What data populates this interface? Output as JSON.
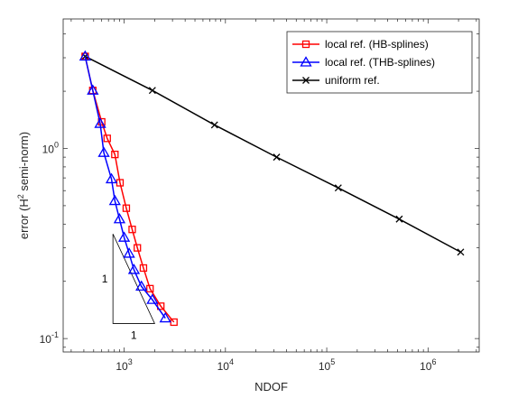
{
  "chart_data": {
    "type": "line",
    "xscale": "log",
    "yscale": "log",
    "xlim": [
      250,
      3200000
    ],
    "ylim": [
      0.085,
      4.8
    ],
    "xlabel": "NDOF",
    "ylabel": {
      "prefix": "error (H",
      "sup": "2",
      "suffix": " semi-norm)"
    },
    "xticks": [
      {
        "value": 1000,
        "base": "10",
        "exp": "3"
      },
      {
        "value": 10000,
        "base": "10",
        "exp": "4"
      },
      {
        "value": 100000,
        "base": "10",
        "exp": "5"
      },
      {
        "value": 1000000,
        "base": "10",
        "exp": "6"
      }
    ],
    "yticks": [
      {
        "value": 0.1,
        "base": "10",
        "exp": "-1"
      },
      {
        "value": 1,
        "base": "10",
        "exp": "0"
      }
    ],
    "grid": false,
    "legend_position": "top-right",
    "series": [
      {
        "name": "local ref. (HB-splines)",
        "color": "#ff0000",
        "marker": "square",
        "points": [
          [
            412,
            3.05
          ],
          [
            490,
            2.02
          ],
          [
            600,
            1.38
          ],
          [
            680,
            1.13
          ],
          [
            810,
            0.93
          ],
          [
            910,
            0.66
          ],
          [
            1050,
            0.485
          ],
          [
            1200,
            0.375
          ],
          [
            1350,
            0.3
          ],
          [
            1550,
            0.235
          ],
          [
            1800,
            0.183
          ],
          [
            2300,
            0.148
          ],
          [
            3100,
            0.122
          ]
        ]
      },
      {
        "name": "local ref. (THB-splines)",
        "color": "#0000ff",
        "marker": "triangle",
        "points": [
          [
            412,
            3.05
          ],
          [
            490,
            2.02
          ],
          [
            580,
            1.35
          ],
          [
            630,
            0.95
          ],
          [
            750,
            0.69
          ],
          [
            810,
            0.53
          ],
          [
            900,
            0.425
          ],
          [
            1000,
            0.34
          ],
          [
            1120,
            0.28
          ],
          [
            1250,
            0.23
          ],
          [
            1480,
            0.188
          ],
          [
            1900,
            0.16
          ],
          [
            2550,
            0.128
          ]
        ]
      },
      {
        "name": "uniform ref.",
        "color": "#000000",
        "marker": "x",
        "points": [
          [
            412,
            3.05
          ],
          [
            1900,
            2.02
          ],
          [
            7800,
            1.33
          ],
          [
            32000,
            0.9
          ],
          [
            130000,
            0.62
          ],
          [
            520000,
            0.425
          ],
          [
            2100000,
            0.285
          ]
        ]
      }
    ],
    "slope_triangle": {
      "corner": [
        775,
        0.12
      ],
      "right": [
        2000,
        0.12
      ],
      "top": [
        775,
        0.355
      ],
      "vertical_label": "1",
      "horizontal_label": "1"
    }
  }
}
